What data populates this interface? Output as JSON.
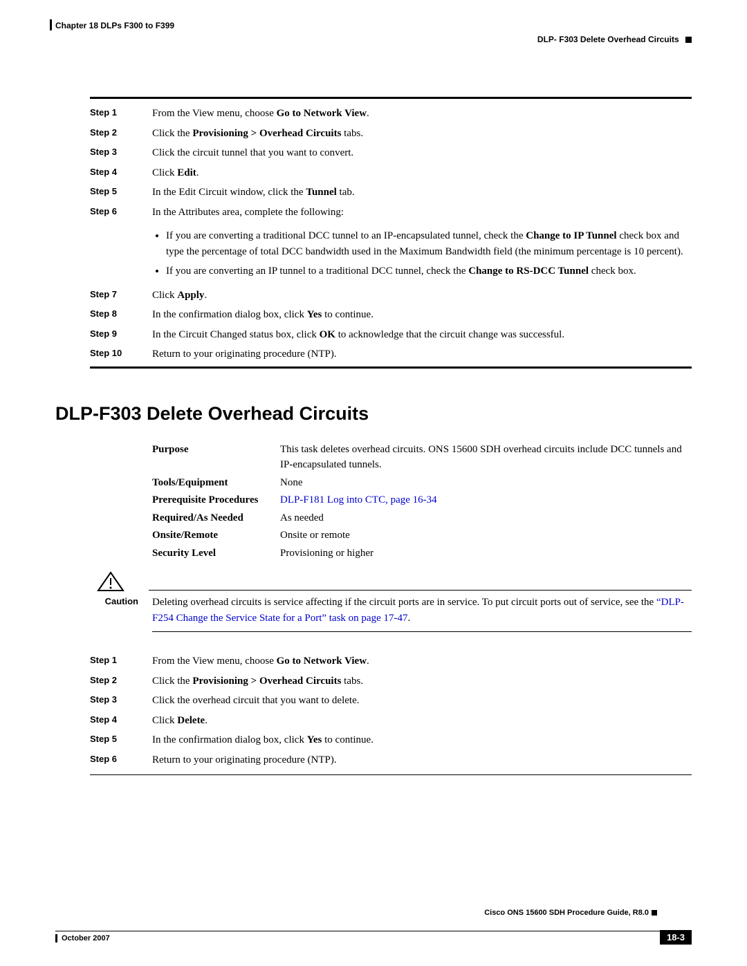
{
  "header": {
    "left": "Chapter 18 DLPs F300 to F399",
    "right": "DLP- F303 Delete Overhead Circuits"
  },
  "steps_top": [
    {
      "n": "Step 1",
      "pre": "From the View menu, choose ",
      "b1": "Go to Network View",
      "post": "."
    },
    {
      "n": "Step 2",
      "pre": "Click the ",
      "b1": "Provisioning > Overhead Circuits",
      "post": " tabs."
    },
    {
      "n": "Step 3",
      "pre": "Click the circuit tunnel that you want to convert.",
      "b1": "",
      "post": ""
    },
    {
      "n": "Step 4",
      "pre": "Click ",
      "b1": "Edit",
      "post": "."
    },
    {
      "n": "Step 5",
      "pre": "In the Edit Circuit window, click the ",
      "b1": "Tunnel",
      "post": " tab."
    },
    {
      "n": "Step 6",
      "pre": "In the Attributes area, complete the following:",
      "b1": "",
      "post": ""
    }
  ],
  "bullets": {
    "b1_pre": "If you are converting a traditional DCC tunnel to an IP-encapsulated tunnel, check the ",
    "b1_bold1": "Change to IP Tunnel",
    "b1_post": " check box and type the percentage of total DCC bandwidth used in the Maximum Bandwidth field (the minimum percentage is 10 percent).",
    "b2_pre": "If you are converting an IP tunnel to a traditional DCC tunnel, check the ",
    "b2_bold1": "Change to RS-DCC Tunnel",
    "b2_post": " check box."
  },
  "steps_mid": [
    {
      "n": "Step 7",
      "pre": "Click ",
      "b1": "Apply",
      "post": "."
    },
    {
      "n": "Step 8",
      "pre": "In the confirmation dialog box, click ",
      "b1": "Yes",
      "post": " to continue."
    },
    {
      "n": "Step 9",
      "pre": "In the Circuit Changed status box, click ",
      "b1": "OK",
      "post": " to acknowledge that the circuit change was successful."
    },
    {
      "n": "Step 10",
      "pre": "Return to your originating procedure (NTP).",
      "b1": "",
      "post": ""
    }
  ],
  "section_title": "DLP-F303 Delete Overhead Circuits",
  "info": {
    "purpose_label": "Purpose",
    "purpose_value": "This task deletes overhead circuits. ONS 15600 SDH overhead circuits include DCC tunnels and IP-encapsulated tunnels.",
    "tools_label": "Tools/Equipment",
    "tools_value": "None",
    "prereq_label": "Prerequisite Procedures",
    "prereq_link": "DLP-F181 Log into CTC, page 16-34",
    "required_label": "Required/As Needed",
    "required_value": "As needed",
    "onsite_label": "Onsite/Remote",
    "onsite_value": "Onsite or remote",
    "security_label": "Security Level",
    "security_value": "Provisioning or higher"
  },
  "caution": {
    "label": "Caution",
    "pre": "Deleting overhead circuits is service affecting if the circuit ports are in service. To put circuit ports out of service, see the ",
    "link": "“DLP-F254 Change the Service State for a Port” task on page 17-47",
    "post": "."
  },
  "steps_bottom": [
    {
      "n": "Step 1",
      "pre": "From the View menu, choose ",
      "b1": "Go to Network View",
      "post": "."
    },
    {
      "n": "Step 2",
      "pre": "Click the ",
      "b1": "Provisioning > Overhead Circuits",
      "post": " tabs."
    },
    {
      "n": "Step 3",
      "pre": "Click the overhead circuit that you want to delete.",
      "b1": "",
      "post": ""
    },
    {
      "n": "Step 4",
      "pre": "Click ",
      "b1": "Delete",
      "post": "."
    },
    {
      "n": "Step 5",
      "pre": "In the confirmation dialog box, click ",
      "b1": "Yes",
      "post": " to continue."
    },
    {
      "n": "Step 6",
      "pre": "Return to your originating procedure (NTP).",
      "b1": "",
      "post": ""
    }
  ],
  "footer": {
    "guide": "Cisco ONS 15600 SDH Procedure Guide, R8.0",
    "date": "October 2007",
    "page": "18-3"
  }
}
